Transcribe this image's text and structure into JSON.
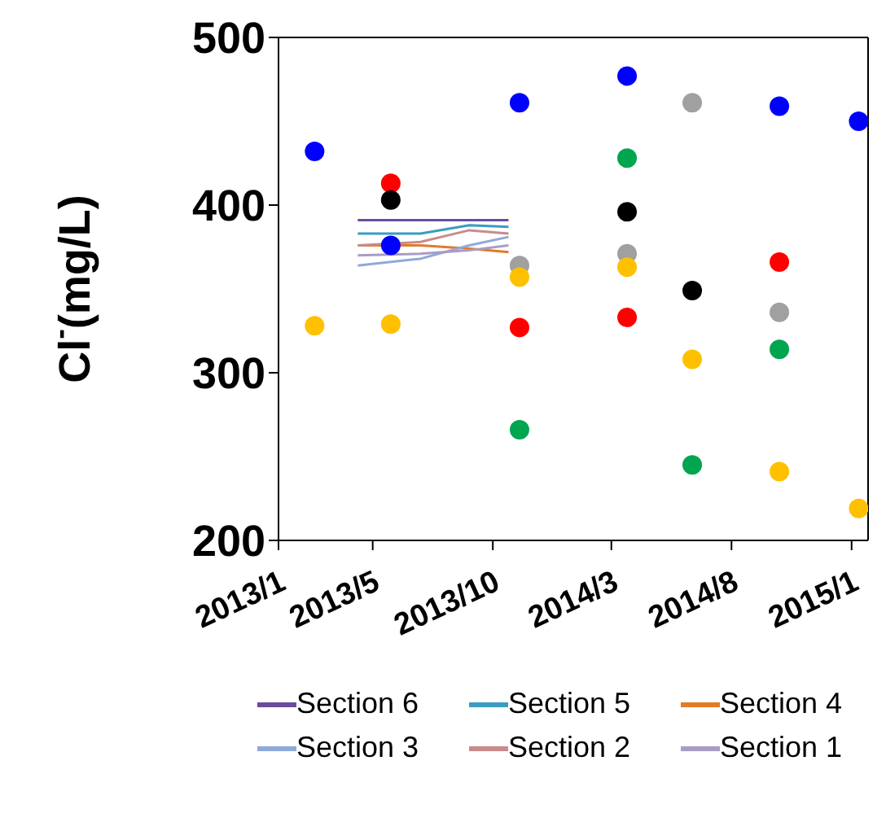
{
  "chart_data": {
    "type": "scatter",
    "ylabel": "Cl$^{-}$(mg/L)",
    "xlim": [
      "2013-01-01",
      "2015-01-22"
    ],
    "ylim": [
      200,
      500
    ],
    "yticks": [
      200,
      300,
      400,
      500
    ],
    "xticks": [
      {
        "value": "2013-01-01",
        "label": "2013/1"
      },
      {
        "value": "2013-05-01",
        "label": "2013/5"
      },
      {
        "value": "2013-10-01",
        "label": "2013/10"
      },
      {
        "value": "2014-03-01",
        "label": "2014/3"
      },
      {
        "value": "2014-08-01",
        "label": "2014/8"
      },
      {
        "value": "2015-01-01",
        "label": "2015/1"
      }
    ],
    "legend": "bottom",
    "series": [
      {
        "type": "line",
        "name": "Section 6",
        "color": "#6a4c9c",
        "marker": "none",
        "x": [
          "2013-04-12",
          "2013-07-01",
          "2013-09-01",
          "2013-10-21"
        ],
        "values": [
          391,
          391,
          391,
          391
        ]
      },
      {
        "type": "line",
        "name": "Section 5",
        "color": "#3a9cc0",
        "marker": "none",
        "x": [
          "2013-04-12",
          "2013-07-01",
          "2013-09-01",
          "2013-10-21"
        ],
        "values": [
          383,
          383,
          388,
          387
        ]
      },
      {
        "type": "line",
        "name": "Section 4",
        "color": "#e07b2a",
        "marker": "none",
        "x": [
          "2013-04-12",
          "2013-07-01",
          "2013-09-01",
          "2013-10-21"
        ],
        "values": [
          376,
          376,
          374,
          372
        ]
      },
      {
        "type": "line",
        "name": "Section 3",
        "color": "#8fa9d8",
        "marker": "none",
        "x": [
          "2013-04-12",
          "2013-07-01",
          "2013-09-01",
          "2013-10-21"
        ],
        "values": [
          364,
          368,
          376,
          381
        ]
      },
      {
        "type": "line",
        "name": "Section 2",
        "color": "#c98b8b",
        "marker": "none",
        "x": [
          "2013-04-12",
          "2013-07-01",
          "2013-09-01",
          "2013-10-21"
        ],
        "values": [
          376,
          378,
          385,
          383
        ]
      },
      {
        "type": "line",
        "name": "Section 1",
        "color": "#a99cc6",
        "marker": "none",
        "x": [
          "2013-04-12",
          "2013-07-01",
          "2013-09-01",
          "2013-10-21"
        ],
        "values": [
          370,
          371,
          373,
          376
        ]
      },
      {
        "color": "#0000ff",
        "marker": "circle",
        "x": [
          "2013-02-16",
          "2013-05-24",
          "2013-11-04",
          "2014-03-21",
          "2014-10-01",
          "2015-01-10"
        ],
        "values": [
          432,
          376,
          461,
          477,
          459,
          450
        ]
      },
      {
        "color": "#ff0000",
        "marker": "circle",
        "x": [
          "2013-05-24",
          "2013-11-04",
          "2014-03-21",
          "2014-10-01"
        ],
        "values": [
          413,
          327,
          333,
          366
        ]
      },
      {
        "color": "#000000",
        "marker": "circle",
        "x": [
          "2013-05-24",
          "2014-03-21",
          "2014-06-12"
        ],
        "values": [
          403,
          396,
          349
        ]
      },
      {
        "color": "#a0a0a0",
        "marker": "circle",
        "x": [
          "2013-11-04",
          "2014-03-21",
          "2014-06-12",
          "2014-10-01"
        ],
        "values": [
          364,
          371,
          461,
          336
        ]
      },
      {
        "color": "#00a550",
        "marker": "circle",
        "x": [
          "2013-11-04",
          "2014-03-21",
          "2014-06-12",
          "2014-10-01"
        ],
        "values": [
          266,
          428,
          245,
          314
        ]
      },
      {
        "color": "#ffc000",
        "marker": "circle",
        "x": [
          "2013-02-16",
          "2013-05-24",
          "2013-11-04",
          "2014-03-21",
          "2014-06-12",
          "2014-10-01",
          "2015-01-10"
        ],
        "values": [
          328,
          329,
          357,
          363,
          308,
          241,
          219
        ]
      }
    ]
  }
}
